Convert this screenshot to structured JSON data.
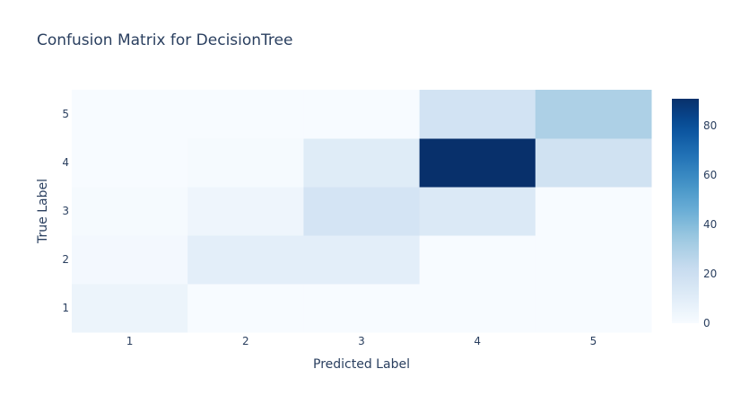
{
  "chart_data": {
    "type": "heatmap",
    "title": "Confusion Matrix for DecisionTree",
    "xlabel": "Predicted Label",
    "ylabel": "True Label",
    "x_categories": [
      "1",
      "2",
      "3",
      "4",
      "5"
    ],
    "y_categories": [
      "1",
      "2",
      "3",
      "4",
      "5"
    ],
    "z": [
      [
        5,
        0,
        0,
        0,
        0
      ],
      [
        2,
        9,
        9,
        0,
        0
      ],
      [
        1,
        4,
        16,
        13,
        0
      ],
      [
        0,
        1,
        11,
        91,
        18
      ],
      [
        0,
        0,
        0,
        17,
        30
      ]
    ],
    "colorscale": "Blues",
    "zmin": 0,
    "zmax": 91,
    "colorbar_ticks": [
      "0",
      "20",
      "40",
      "60",
      "80"
    ],
    "colorbar_tick_values": [
      0,
      20,
      40,
      60,
      80
    ]
  }
}
